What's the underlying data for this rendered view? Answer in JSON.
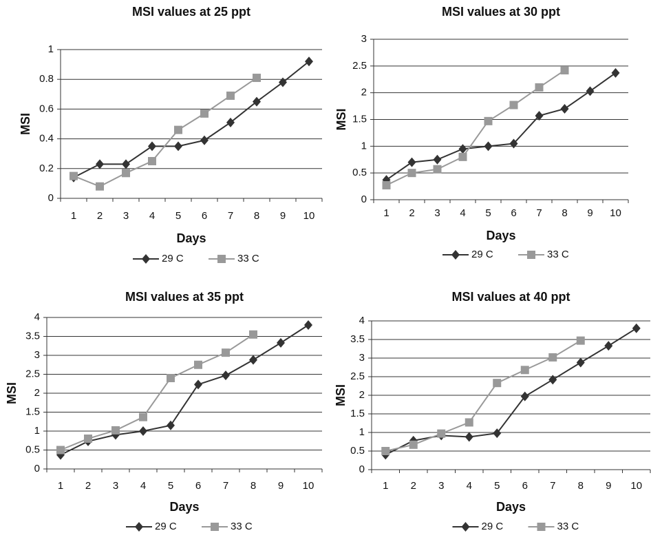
{
  "chart_data": [
    {
      "type": "line",
      "title": "MSI values at 25 ppt",
      "x_label": "Days",
      "y_label": "MSI",
      "categories": [
        "1",
        "2",
        "3",
        "4",
        "5",
        "6",
        "7",
        "8",
        "9",
        "10"
      ],
      "series": [
        {
          "name": "29 C",
          "color": "#333333",
          "marker": "diamond",
          "values": [
            0.14,
            0.23,
            0.23,
            0.35,
            0.35,
            0.39,
            0.51,
            0.65,
            0.78,
            0.92
          ]
        },
        {
          "name": "33 C",
          "color": "#999999",
          "marker": "square",
          "values": [
            0.15,
            0.08,
            0.17,
            0.25,
            0.46,
            0.57,
            0.69,
            0.81,
            null,
            null
          ]
        }
      ],
      "ylim": [
        0,
        1
      ],
      "yticks": [
        0,
        0.2,
        0.4,
        0.6,
        0.8,
        1
      ],
      "grid": true
    },
    {
      "type": "line",
      "title": "MSI values at 30 ppt",
      "x_label": "Days",
      "y_label": "MSI",
      "categories": [
        "1",
        "2",
        "3",
        "4",
        "5",
        "6",
        "7",
        "8",
        "9",
        "10"
      ],
      "series": [
        {
          "name": "29 C",
          "color": "#333333",
          "marker": "diamond",
          "values": [
            0.37,
            0.7,
            0.75,
            0.95,
            1.0,
            1.05,
            1.57,
            1.7,
            2.03,
            2.37
          ]
        },
        {
          "name": "33 C",
          "color": "#999999",
          "marker": "square",
          "values": [
            0.27,
            0.5,
            0.57,
            0.8,
            1.47,
            1.77,
            2.1,
            2.42,
            null,
            null
          ]
        }
      ],
      "ylim": [
        0,
        3
      ],
      "yticks": [
        0,
        0.5,
        1,
        1.5,
        2,
        2.5,
        3
      ],
      "grid": true
    },
    {
      "type": "line",
      "title": "MSI values at 35 ppt",
      "x_label": "Days",
      "y_label": "MSI",
      "categories": [
        "1",
        "2",
        "3",
        "4",
        "5",
        "6",
        "7",
        "8",
        "9",
        "10"
      ],
      "series": [
        {
          "name": "29 C",
          "color": "#333333",
          "marker": "diamond",
          "values": [
            0.37,
            0.73,
            0.9,
            1.0,
            1.15,
            2.23,
            2.47,
            2.88,
            3.33,
            3.8
          ]
        },
        {
          "name": "33 C",
          "color": "#999999",
          "marker": "square",
          "values": [
            0.5,
            0.8,
            1.02,
            1.37,
            2.4,
            2.75,
            3.07,
            3.55,
            null,
            null
          ]
        }
      ],
      "ylim": [
        0,
        4
      ],
      "yticks": [
        0,
        0.5,
        1,
        1.5,
        2,
        2.5,
        3,
        3.5,
        4
      ],
      "grid": true
    },
    {
      "type": "line",
      "title": "MSI values at 40 ppt",
      "x_label": "Days",
      "y_label": "MSI",
      "categories": [
        "1",
        "2",
        "3",
        "4",
        "5",
        "6",
        "7",
        "8",
        "9",
        "10"
      ],
      "series": [
        {
          "name": "29 C",
          "color": "#333333",
          "marker": "diamond",
          "values": [
            0.4,
            0.78,
            0.92,
            0.88,
            0.98,
            1.97,
            2.42,
            2.88,
            3.33,
            3.8
          ]
        },
        {
          "name": "33 C",
          "color": "#999999",
          "marker": "square",
          "values": [
            0.5,
            0.67,
            0.97,
            1.27,
            2.33,
            2.68,
            3.02,
            3.47,
            null,
            null
          ]
        }
      ],
      "ylim": [
        0,
        4
      ],
      "yticks": [
        0,
        0.5,
        1,
        1.5,
        2,
        2.5,
        3,
        3.5,
        4
      ],
      "grid": true
    }
  ]
}
